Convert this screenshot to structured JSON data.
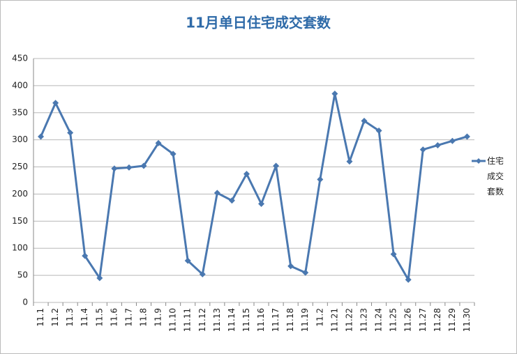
{
  "chart_data": {
    "type": "line",
    "title": "11月单日住宅成交套数",
    "categories": [
      "11.1",
      "11.2",
      "11.3",
      "11.4",
      "11.5",
      "11.6",
      "11.7",
      "11.8",
      "11.9",
      "11.10",
      "11.11",
      "11.12",
      "11.13",
      "11.14",
      "11.15",
      "11.16",
      "11.17",
      "11.18",
      "11.19",
      "11.2",
      "11.21",
      "11.22",
      "11.23",
      "11.24",
      "11.25",
      "11.26",
      "11.27",
      "11.28",
      "11.29",
      "11.30"
    ],
    "series": [
      {
        "name": "住宅成交套数",
        "color": "#4a78b0",
        "values": [
          306,
          368,
          313,
          86,
          45,
          247,
          249,
          252,
          294,
          274,
          77,
          52,
          202,
          188,
          237,
          182,
          252,
          67,
          55,
          227,
          385,
          260,
          335,
          317,
          89,
          42,
          282,
          290,
          298,
          306
        ]
      }
    ],
    "ylim": [
      0,
      450
    ],
    "yticks": [
      0,
      50,
      100,
      150,
      200,
      250,
      300,
      350,
      400,
      450
    ],
    "grid": true,
    "legend": "right"
  }
}
